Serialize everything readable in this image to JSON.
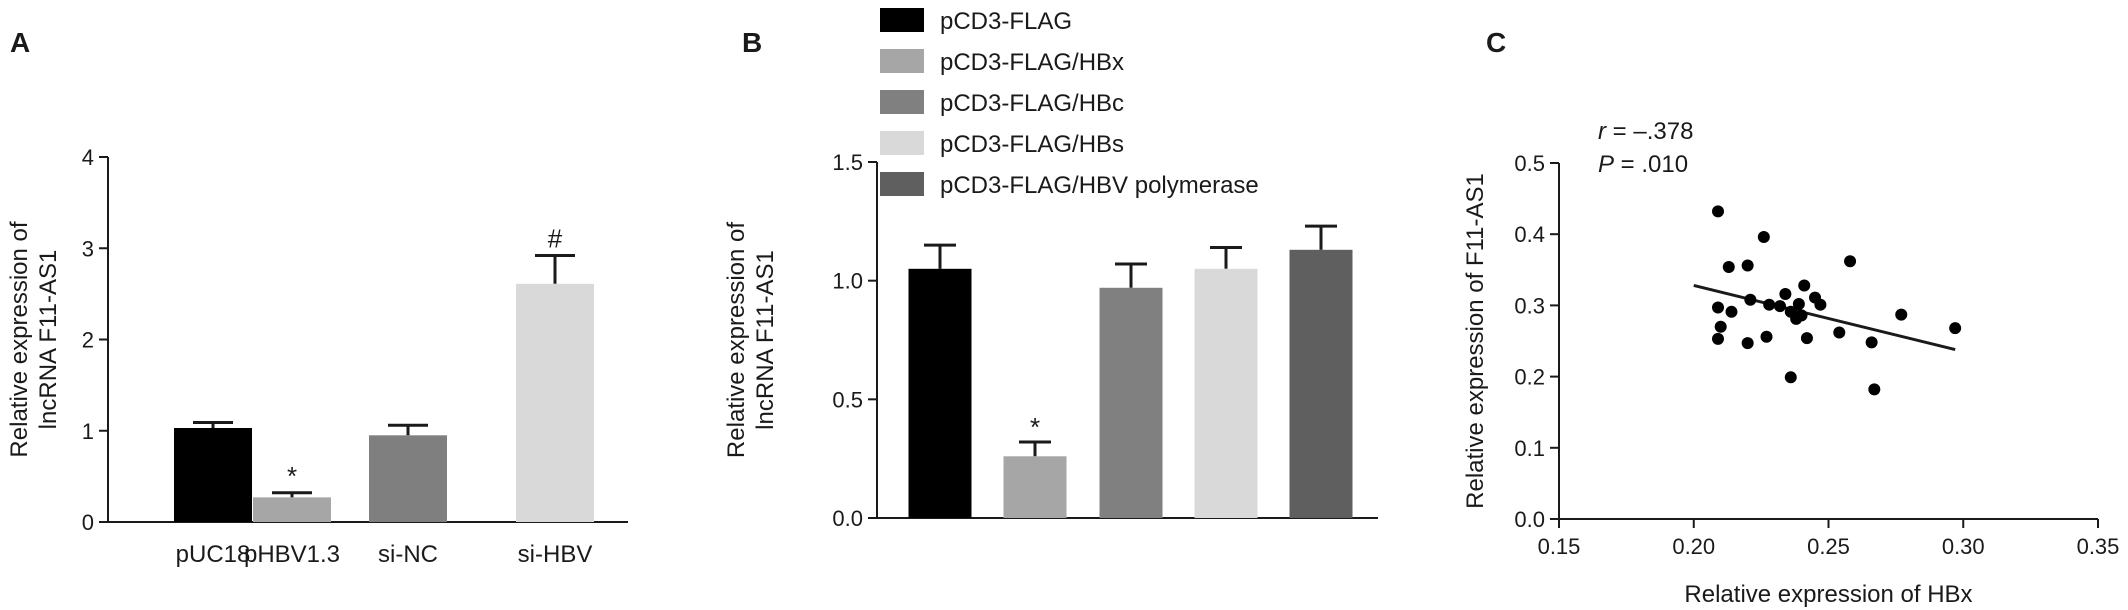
{
  "chart_data": [
    {
      "panel": "A",
      "type": "bar",
      "ylabel_lines": [
        "Relative expression of",
        "lncRNA F11-AS1"
      ],
      "ylim": [
        0,
        4
      ],
      "yticks": [
        "0",
        "1",
        "2",
        "3",
        "4"
      ],
      "categories": [
        "pUC18",
        "pHBV1.3",
        "si-NC",
        "si-HBV"
      ],
      "values": [
        1.03,
        0.27,
        0.95,
        2.61
      ],
      "errors": [
        0.06,
        0.05,
        0.11,
        0.31
      ],
      "annotations": [
        "",
        "*",
        "",
        "#"
      ],
      "colors": [
        "#000000",
        "#a6a6a6",
        "#7f7f7f",
        "#d9d9d9"
      ]
    },
    {
      "panel": "B",
      "type": "bar",
      "ylabel_lines": [
        "Relative expression of",
        "lncRNA F11-AS1"
      ],
      "ylim": [
        0,
        1.5
      ],
      "yticks": [
        "0.0",
        "0.5",
        "1.0",
        "1.5"
      ],
      "categories": [
        "pCD3-FLAG",
        "pCD3-FLAG/HBx",
        "pCD3-FLAG/HBc",
        "pCD3-FLAG/HBs",
        "pCD3-FLAG/HBV polymerase"
      ],
      "values": [
        1.05,
        0.26,
        0.97,
        1.05,
        1.13
      ],
      "errors": [
        0.1,
        0.06,
        0.1,
        0.09,
        0.1
      ],
      "annotations": [
        "",
        "*",
        "",
        "",
        ""
      ],
      "colors": [
        "#000000",
        "#a6a6a6",
        "#808080",
        "#d9d9d9",
        "#5f5f5f"
      ],
      "legend": {
        "position": "top",
        "entries": [
          "pCD3-FLAG",
          "pCD3-FLAG/HBx",
          "pCD3-FLAG/HBc",
          "pCD3-FLAG/HBs",
          "pCD3-FLAG/HBV polymerase"
        ]
      }
    },
    {
      "panel": "C",
      "type": "scatter",
      "xlabel": "Relative expression of HBx",
      "ylabel": "Relative expression of F11-AS1",
      "xlim": [
        0.15,
        0.35
      ],
      "ylim": [
        0,
        0.5
      ],
      "xticks": [
        "0.15",
        "0.20",
        "0.25",
        "0.30",
        "0.35"
      ],
      "yticks": [
        "0.0",
        "0.1",
        "0.2",
        "0.3",
        "0.4",
        "0.5"
      ],
      "stats": {
        "r_prefix": "r",
        "r_value": " = –.378",
        "p_prefix": "P",
        "p_value": " = .010"
      },
      "points": [
        [
          0.209,
          0.432
        ],
        [
          0.226,
          0.396
        ],
        [
          0.258,
          0.362
        ],
        [
          0.213,
          0.354
        ],
        [
          0.22,
          0.356
        ],
        [
          0.241,
          0.328
        ],
        [
          0.234,
          0.316
        ],
        [
          0.245,
          0.311
        ],
        [
          0.239,
          0.302
        ],
        [
          0.221,
          0.308
        ],
        [
          0.228,
          0.301
        ],
        [
          0.247,
          0.301
        ],
        [
          0.209,
          0.297
        ],
        [
          0.214,
          0.291
        ],
        [
          0.232,
          0.299
        ],
        [
          0.236,
          0.291
        ],
        [
          0.24,
          0.286
        ],
        [
          0.238,
          0.281
        ],
        [
          0.277,
          0.287
        ],
        [
          0.21,
          0.27
        ],
        [
          0.297,
          0.268
        ],
        [
          0.254,
          0.262
        ],
        [
          0.242,
          0.254
        ],
        [
          0.227,
          0.256
        ],
        [
          0.209,
          0.253
        ],
        [
          0.22,
          0.247
        ],
        [
          0.266,
          0.248
        ],
        [
          0.236,
          0.199
        ],
        [
          0.267,
          0.182
        ]
      ],
      "regression": {
        "x": [
          0.2,
          0.297
        ],
        "y": [
          0.328,
          0.238
        ]
      },
      "point_color": "#000000"
    }
  ]
}
